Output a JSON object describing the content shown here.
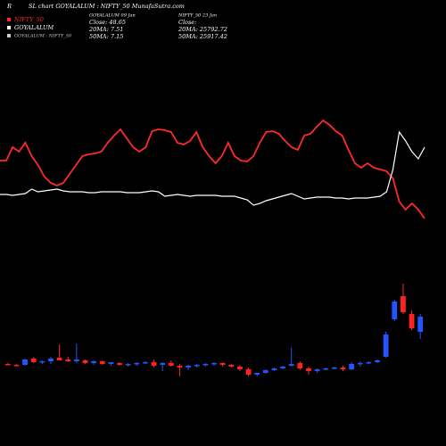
{
  "header": {
    "letter": "R",
    "title": "SL chart GOYALALUM : NIFTY_50  MunafaSutra.com"
  },
  "legend": [
    {
      "name": "NIFTY_50",
      "color": "#ff2a2a"
    },
    {
      "name": "GOYALALUM",
      "color": "#ffffff"
    },
    {
      "name": "GOYALALUM : NIFTY_50",
      "color": "#cccccc"
    }
  ],
  "info": [
    {
      "lines": [
        "GOYALALUM 09 Jan",
        "Close: 48.65",
        "20MA: 7.51",
        "50MA: 7.15"
      ]
    },
    {
      "lines": [
        "NIFTY_50  23 Jan",
        "Close:",
        "20MA: 25792.72",
        "50MA: 25917.42"
      ]
    }
  ],
  "chart_data": [
    {
      "type": "line",
      "ylim": [
        0,
        120
      ],
      "series": [
        {
          "name": "NIFTY_50",
          "color": "#ff2a2a",
          "values": [
            70,
            70,
            85,
            80,
            90,
            75,
            65,
            52,
            45,
            42,
            45,
            55,
            65,
            75,
            77,
            78,
            80,
            90,
            98,
            105,
            95,
            85,
            80,
            85,
            103,
            105,
            104,
            102,
            90,
            88,
            92,
            102,
            85,
            75,
            67,
            75,
            90,
            75,
            70,
            69,
            75,
            90,
            102,
            103,
            100,
            92,
            85,
            82,
            98,
            100,
            108,
            115,
            110,
            103,
            98,
            82,
            67,
            62,
            67,
            62,
            60,
            58,
            50,
            24,
            15,
            22,
            15,
            5
          ]
        },
        {
          "name": "GOYALALUM",
          "color": "#ffffff",
          "values": [
            32,
            32,
            31,
            32,
            33,
            38,
            35,
            36,
            37,
            38,
            36,
            35,
            35,
            35,
            34,
            34,
            35,
            35,
            35,
            35,
            34,
            34,
            34,
            35,
            36,
            35,
            30,
            31,
            32,
            31,
            30,
            31,
            31,
            31,
            31,
            30,
            30,
            30,
            28,
            26,
            20,
            22,
            25,
            27,
            29,
            31,
            33,
            30,
            27,
            28,
            29,
            29,
            29,
            28,
            28,
            27,
            28,
            28,
            28,
            29,
            30,
            35,
            60,
            102,
            92,
            80,
            72,
            85
          ]
        }
      ]
    },
    {
      "type": "candlestick",
      "ylim": [
        0,
        140
      ],
      "up_color": "#2255ff",
      "down_color": "#ff2222",
      "open": [
        22,
        21,
        21,
        28,
        24,
        25,
        29,
        27,
        25,
        26,
        23,
        25,
        22,
        23,
        21,
        22,
        23,
        24,
        21,
        23,
        20,
        18,
        20,
        21,
        22,
        23,
        21,
        19,
        16,
        10,
        12,
        15,
        17,
        20,
        23,
        17,
        14,
        16,
        17,
        18,
        16,
        22,
        23,
        24,
        30,
        72,
        98,
        78,
        58
      ],
      "high": [
        23,
        22,
        28,
        30,
        26,
        30,
        44,
        30,
        45,
        27,
        26,
        26,
        24,
        24,
        23,
        24,
        25,
        27,
        24,
        26,
        22,
        21,
        22,
        23,
        24,
        24,
        22,
        21,
        18,
        12,
        16,
        18,
        20,
        40,
        25,
        19,
        17,
        18,
        19,
        20,
        24,
        25,
        25,
        27,
        58,
        94,
        112,
        82,
        78
      ],
      "low": [
        21,
        20,
        20,
        23,
        22,
        22,
        26,
        24,
        23,
        22,
        21,
        21,
        20,
        20,
        19,
        20,
        22,
        18,
        14,
        19,
        8,
        15,
        18,
        19,
        20,
        19,
        18,
        14,
        8,
        8,
        11,
        14,
        16,
        19,
        15,
        10,
        12,
        15,
        16,
        14,
        15,
        19,
        22,
        23,
        29,
        70,
        78,
        60,
        50
      ],
      "close": [
        21,
        20,
        27,
        24,
        25,
        28,
        26,
        25,
        27,
        23,
        25,
        22,
        24,
        21,
        22,
        23,
        24,
        20,
        23,
        20,
        18,
        20,
        21,
        22,
        23,
        21,
        19,
        16,
        10,
        12,
        15,
        17,
        19,
        22,
        17,
        14,
        16,
        17,
        18,
        16,
        22,
        23,
        24,
        26,
        55,
        92,
        80,
        62,
        75
      ]
    }
  ]
}
